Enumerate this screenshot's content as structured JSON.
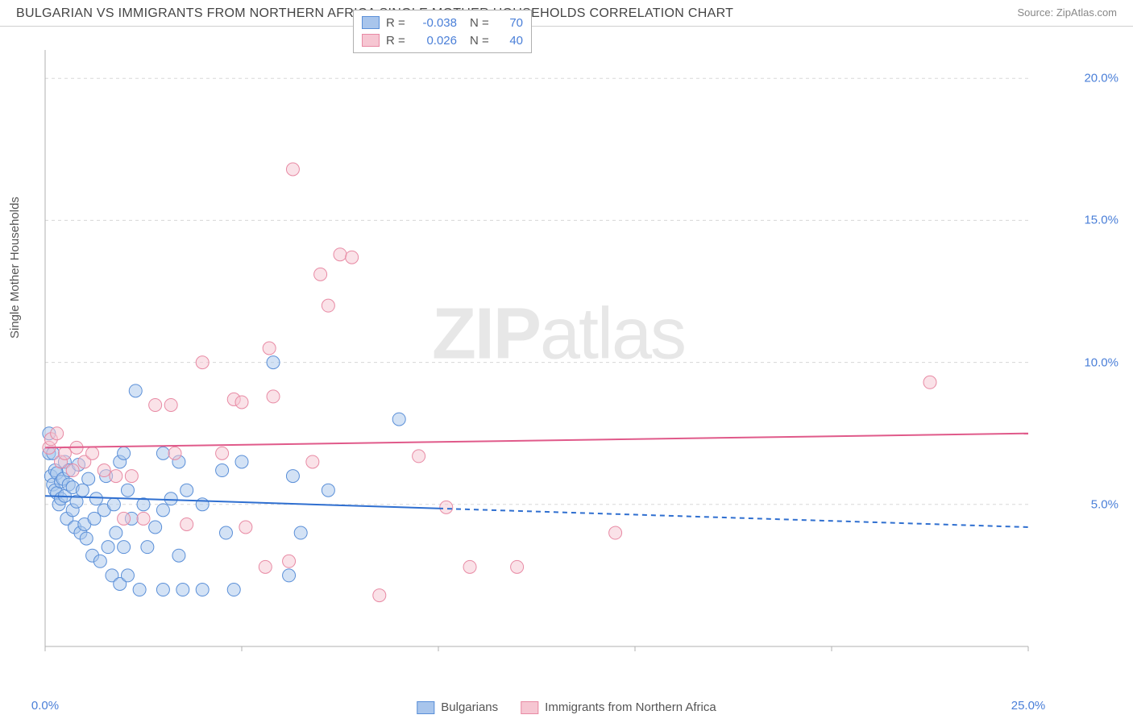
{
  "title": "BULGARIAN VS IMMIGRANTS FROM NORTHERN AFRICA SINGLE MOTHER HOUSEHOLDS CORRELATION CHART",
  "source": "Source: ZipAtlas.com",
  "watermark_a": "ZIP",
  "watermark_b": "atlas",
  "y_axis_label": "Single Mother Households",
  "chart": {
    "type": "scatter",
    "background_color": "#ffffff",
    "grid_color": "#d8d8d8",
    "axis_color": "#b0b0b0",
    "x_range": [
      0,
      25
    ],
    "y_range": [
      0,
      21
    ],
    "x_ticks": [
      0,
      5,
      10,
      15,
      20,
      25
    ],
    "x_tick_labels": [
      "0.0%",
      "",
      "",
      "",
      "",
      "25.0%"
    ],
    "y_ticks": [
      5,
      10,
      15,
      20
    ],
    "y_tick_labels": [
      "5.0%",
      "10.0%",
      "15.0%",
      "20.0%"
    ],
    "tick_label_color": "#4a7fd8",
    "tick_label_fontsize": 15,
    "marker_radius": 8,
    "marker_opacity": 0.5,
    "series": [
      {
        "name": "Bulgarians",
        "color_fill": "#a8c5ec",
        "color_stroke": "#5a8fd8",
        "R": "-0.038",
        "N": "70",
        "trend": {
          "y_start": 5.3,
          "y_end": 4.2,
          "x_data_max": 10.0,
          "color": "#2f6fd0",
          "width": 2
        },
        "points": [
          [
            0.1,
            7.5
          ],
          [
            0.1,
            6.8
          ],
          [
            0.15,
            6.0
          ],
          [
            0.2,
            6.8
          ],
          [
            0.2,
            5.7
          ],
          [
            0.25,
            5.5
          ],
          [
            0.25,
            6.2
          ],
          [
            0.3,
            5.4
          ],
          [
            0.3,
            6.1
          ],
          [
            0.35,
            5.0
          ],
          [
            0.4,
            5.8
          ],
          [
            0.4,
            5.2
          ],
          [
            0.45,
            5.9
          ],
          [
            0.5,
            6.5
          ],
          [
            0.5,
            5.3
          ],
          [
            0.55,
            4.5
          ],
          [
            0.6,
            5.7
          ],
          [
            0.6,
            6.2
          ],
          [
            0.7,
            4.8
          ],
          [
            0.7,
            5.6
          ],
          [
            0.75,
            4.2
          ],
          [
            0.8,
            5.1
          ],
          [
            0.85,
            6.4
          ],
          [
            0.9,
            4.0
          ],
          [
            0.95,
            5.5
          ],
          [
            1.0,
            4.3
          ],
          [
            1.05,
            3.8
          ],
          [
            1.1,
            5.9
          ],
          [
            1.2,
            3.2
          ],
          [
            1.25,
            4.5
          ],
          [
            1.3,
            5.2
          ],
          [
            1.4,
            3.0
          ],
          [
            1.5,
            4.8
          ],
          [
            1.55,
            6.0
          ],
          [
            1.6,
            3.5
          ],
          [
            1.7,
            2.5
          ],
          [
            1.75,
            5.0
          ],
          [
            1.8,
            4.0
          ],
          [
            1.9,
            2.2
          ],
          [
            1.9,
            6.5
          ],
          [
            2.0,
            3.5
          ],
          [
            2.0,
            6.8
          ],
          [
            2.1,
            5.5
          ],
          [
            2.1,
            2.5
          ],
          [
            2.2,
            4.5
          ],
          [
            2.3,
            9.0
          ],
          [
            2.4,
            2.0
          ],
          [
            2.5,
            5.0
          ],
          [
            2.6,
            3.5
          ],
          [
            2.8,
            4.2
          ],
          [
            3.0,
            6.8
          ],
          [
            3.0,
            4.8
          ],
          [
            3.0,
            2.0
          ],
          [
            3.2,
            5.2
          ],
          [
            3.4,
            6.5
          ],
          [
            3.4,
            3.2
          ],
          [
            3.5,
            2.0
          ],
          [
            3.6,
            5.5
          ],
          [
            4.0,
            5.0
          ],
          [
            4.0,
            2.0
          ],
          [
            4.5,
            6.2
          ],
          [
            4.6,
            4.0
          ],
          [
            4.8,
            2.0
          ],
          [
            5.0,
            6.5
          ],
          [
            5.8,
            10.0
          ],
          [
            6.2,
            2.5
          ],
          [
            6.3,
            6.0
          ],
          [
            6.5,
            4.0
          ],
          [
            7.2,
            5.5
          ],
          [
            9.0,
            8.0
          ]
        ]
      },
      {
        "name": "Immigrants from Northern Africa",
        "color_fill": "#f6c6d2",
        "color_stroke": "#e88aa4",
        "R": "0.026",
        "N": "40",
        "trend": {
          "y_start": 7.0,
          "y_end": 7.5,
          "x_data_max": 25.0,
          "color": "#e05a8a",
          "width": 2
        },
        "points": [
          [
            0.1,
            7.0
          ],
          [
            0.15,
            7.3
          ],
          [
            0.3,
            7.5
          ],
          [
            0.4,
            6.5
          ],
          [
            0.5,
            6.8
          ],
          [
            0.7,
            6.2
          ],
          [
            0.8,
            7.0
          ],
          [
            1.0,
            6.5
          ],
          [
            1.2,
            6.8
          ],
          [
            1.5,
            6.2
          ],
          [
            1.8,
            6.0
          ],
          [
            2.0,
            4.5
          ],
          [
            2.2,
            6.0
          ],
          [
            2.5,
            4.5
          ],
          [
            2.8,
            8.5
          ],
          [
            3.2,
            8.5
          ],
          [
            3.3,
            6.8
          ],
          [
            3.6,
            4.3
          ],
          [
            4.0,
            10.0
          ],
          [
            4.5,
            6.8
          ],
          [
            4.8,
            8.7
          ],
          [
            5.0,
            8.6
          ],
          [
            5.1,
            4.2
          ],
          [
            5.6,
            2.8
          ],
          [
            5.7,
            10.5
          ],
          [
            5.8,
            8.8
          ],
          [
            6.2,
            3.0
          ],
          [
            6.3,
            16.8
          ],
          [
            6.8,
            6.5
          ],
          [
            7.0,
            13.1
          ],
          [
            7.2,
            12.0
          ],
          [
            7.5,
            13.8
          ],
          [
            7.8,
            13.7
          ],
          [
            8.5,
            1.8
          ],
          [
            9.5,
            6.7
          ],
          [
            10.2,
            4.9
          ],
          [
            10.8,
            2.8
          ],
          [
            12.0,
            2.8
          ],
          [
            14.5,
            4.0
          ],
          [
            22.5,
            9.3
          ]
        ]
      }
    ]
  },
  "bottom_legend": [
    {
      "label": "Bulgarians",
      "fill": "#a8c5ec",
      "stroke": "#5a8fd8"
    },
    {
      "label": "Immigrants from Northern Africa",
      "fill": "#f6c6d2",
      "stroke": "#e88aa4"
    }
  ]
}
